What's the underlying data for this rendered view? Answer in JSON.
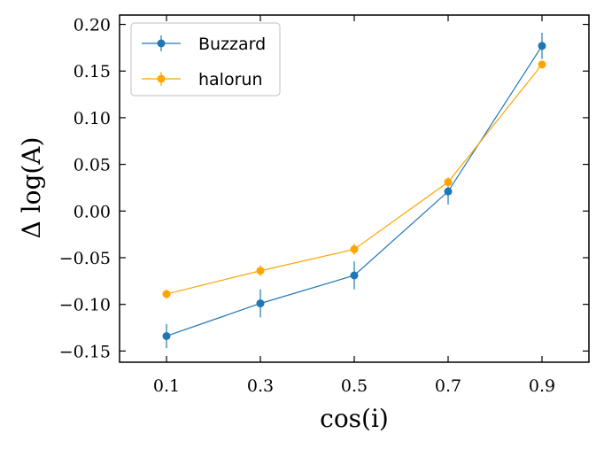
{
  "chart_data": {
    "type": "line",
    "xlabel": "cos(i)",
    "ylabel": "Δ log(A)",
    "xlim": [
      0.0,
      1.0
    ],
    "ylim": [
      -0.162,
      0.21
    ],
    "x_ticks": [
      0.1,
      0.3,
      0.5,
      0.7,
      0.9
    ],
    "x_tick_labels": [
      "0.1",
      "0.3",
      "0.5",
      "0.7",
      "0.9"
    ],
    "y_ticks": [
      -0.15,
      -0.1,
      -0.05,
      0.0,
      0.05,
      0.1,
      0.15,
      0.2
    ],
    "y_tick_labels": [
      "−0.15",
      "−0.10",
      "−0.05",
      "0.00",
      "0.05",
      "0.10",
      "0.15",
      "0.20"
    ],
    "grid": false,
    "legend_position": "top-left",
    "series": [
      {
        "name": "Buzzard",
        "color": "#1f77b4",
        "x": [
          0.1,
          0.3,
          0.5,
          0.7,
          0.9
        ],
        "y": [
          -0.134,
          -0.099,
          -0.069,
          0.021,
          0.177
        ],
        "yerr": [
          0.013,
          0.015,
          0.015,
          0.014,
          0.014
        ]
      },
      {
        "name": "halorun",
        "color": "#ffa500",
        "x": [
          0.1,
          0.3,
          0.5,
          0.7,
          0.9
        ],
        "y": [
          -0.089,
          -0.064,
          -0.041,
          0.031,
          0.157
        ],
        "yerr": [
          0.005,
          0.006,
          0.006,
          0.005,
          0.004
        ]
      }
    ]
  }
}
